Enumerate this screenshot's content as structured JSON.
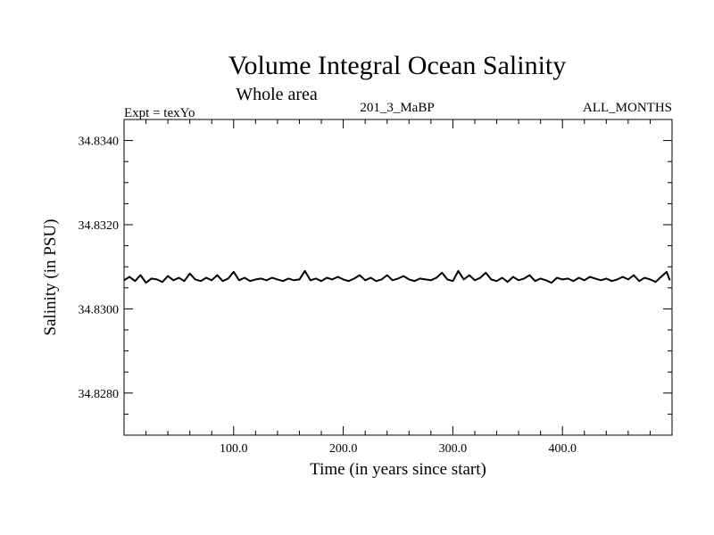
{
  "chart_data": {
    "type": "line",
    "title": "Volume Integral Ocean Salinity",
    "subtitle": "Whole area",
    "header_left": "Expt = texYo",
    "header_center": "201_3_MaBP",
    "header_right": "ALL_MONTHS",
    "xlabel": "Time (in years since start)",
    "ylabel": "Salinity (in PSU)",
    "xlim": [
      0,
      500
    ],
    "ylim": [
      34.827,
      34.8345
    ],
    "xticks": [
      100,
      200,
      300,
      400
    ],
    "xtick_labels": [
      "100.0",
      "200.0",
      "300.0",
      "400.0"
    ],
    "yticks": [
      34.828,
      34.83,
      34.832,
      34.834
    ],
    "ytick_labels": [
      "34.8280",
      "34.8300",
      "34.8320",
      "34.8340"
    ],
    "grid": false,
    "series": [
      {
        "color": "#000000",
        "x": [
          0,
          5,
          10,
          15,
          20,
          25,
          30,
          35,
          40,
          45,
          50,
          55,
          60,
          65,
          70,
          75,
          80,
          85,
          90,
          95,
          100,
          105,
          110,
          115,
          120,
          125,
          130,
          135,
          140,
          145,
          150,
          155,
          160,
          165,
          170,
          175,
          180,
          185,
          190,
          195,
          200,
          205,
          210,
          215,
          220,
          225,
          230,
          235,
          240,
          245,
          250,
          255,
          260,
          265,
          270,
          275,
          280,
          285,
          290,
          295,
          300,
          305,
          310,
          315,
          320,
          325,
          330,
          335,
          340,
          345,
          350,
          355,
          360,
          365,
          370,
          375,
          380,
          385,
          390,
          395,
          400,
          405,
          410,
          415,
          420,
          425,
          430,
          435,
          440,
          445,
          450,
          455,
          460,
          465,
          470,
          475,
          480,
          485,
          490,
          495,
          498
        ],
        "y": [
          34.83068,
          34.83076,
          34.83066,
          34.8308,
          34.83062,
          34.83072,
          34.8307,
          34.83064,
          34.83078,
          34.83068,
          34.83074,
          34.83066,
          34.83084,
          34.8307,
          34.83066,
          34.83074,
          34.83068,
          34.8308,
          34.83066,
          34.83072,
          34.83088,
          34.83068,
          34.83074,
          34.83066,
          34.8307,
          34.83072,
          34.83068,
          34.83074,
          34.8307,
          34.83066,
          34.83072,
          34.83068,
          34.8307,
          34.8309,
          34.83068,
          34.83072,
          34.83066,
          34.83074,
          34.8307,
          34.83076,
          34.8307,
          34.83066,
          34.83072,
          34.8308,
          34.83068,
          34.83074,
          34.83066,
          34.8307,
          34.8308,
          34.83068,
          34.83072,
          34.83078,
          34.8307,
          34.83066,
          34.83072,
          34.8307,
          34.83068,
          34.83074,
          34.83086,
          34.8307,
          34.83066,
          34.8309,
          34.8307,
          34.8308,
          34.83068,
          34.83074,
          34.83086,
          34.8307,
          34.83066,
          34.83074,
          34.83064,
          34.83076,
          34.83068,
          34.83072,
          34.8308,
          34.83066,
          34.83072,
          34.83068,
          34.83062,
          34.83074,
          34.8307,
          34.83072,
          34.83066,
          34.83074,
          34.83068,
          34.83076,
          34.83072,
          34.83068,
          34.83072,
          34.83066,
          34.8307,
          34.83076,
          34.8307,
          34.8308,
          34.83066,
          34.83074,
          34.8307,
          34.83064,
          34.83076,
          34.83088,
          34.83068
        ]
      }
    ]
  }
}
